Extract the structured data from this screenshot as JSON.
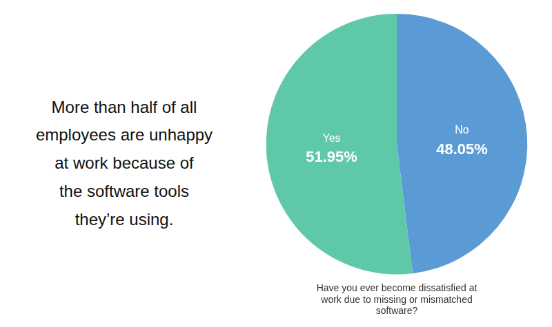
{
  "chart_data": {
    "type": "pie",
    "categories": [
      "No",
      "Yes"
    ],
    "values": [
      48.05,
      51.95
    ],
    "value_labels": [
      "48.05%",
      "51.95%"
    ],
    "colors": [
      "#5b9bd5",
      "#5ec8a8"
    ],
    "data_labels": true,
    "subtitle": "Have you ever become dissatisfied at\nwork due to missing or mismatched\nsoftware?",
    "annotations": [
      "More than half of all",
      "employees are unhappy",
      "at work because of",
      "the software tools",
      "they’re using."
    ]
  }
}
